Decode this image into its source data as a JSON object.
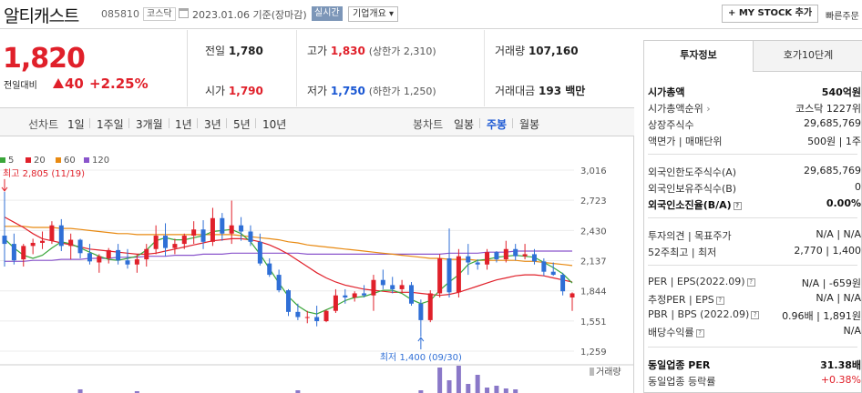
{
  "header": {
    "name": "알티캐스트",
    "code": "085810",
    "market": "코스닥",
    "date": "2023.01.06",
    "basis": "기준(장마감)",
    "realtime": "실시간",
    "overview": "기업개요",
    "overview_arrow": "▾",
    "mystock": "+ MY STOCK 추가",
    "fast": "빠른주문"
  },
  "quote": {
    "price": "1,820",
    "change_label": "전일대비",
    "change": "40",
    "pct": "+2.25%"
  },
  "stats": {
    "prev_l": "전일",
    "prev": "1,780",
    "high_l": "고가",
    "high": "1,830",
    "up_limit": "(상한가 2,310)",
    "vol_l": "거래량",
    "vol": "107,160",
    "open_l": "시가",
    "open": "1,790",
    "low_l": "저가",
    "low": "1,750",
    "down_limit": "(하한가 1,250)",
    "amt_l": "거래대금",
    "amt": "193 백만"
  },
  "toolbar": {
    "line": "선차트",
    "line_items": [
      "1일",
      "1주일",
      "3개월",
      "1년",
      "3년",
      "5년",
      "10년"
    ],
    "candle": "봉차트",
    "candle_items": [
      "일봉",
      "주봉",
      "월봉"
    ],
    "active_candle": "주봉"
  },
  "legend": [
    {
      "label": "5",
      "color": "#3aa63a"
    },
    {
      "label": "20",
      "color": "#e0202a"
    },
    {
      "label": "60",
      "color": "#e88a12"
    },
    {
      "label": "120",
      "color": "#8a55cc"
    }
  ],
  "chart_data": {
    "type": "candlestick",
    "period": "주봉",
    "y_ticks": [
      3016,
      2723,
      2430,
      2137,
      1844,
      1551,
      1259
    ],
    "ylim": [
      1259,
      3016
    ],
    "max_label": "최고 2,805 (11/19)",
    "min_label": "최저 1,400 (09/30)",
    "volume_label": "거래량",
    "candles": [
      [
        2380,
        2805,
        2080,
        2300
      ],
      [
        2300,
        2400,
        2100,
        2140
      ],
      [
        2150,
        2300,
        2080,
        2280
      ],
      [
        2280,
        2350,
        2200,
        2310
      ],
      [
        2310,
        2420,
        2250,
        2330
      ],
      [
        2330,
        2520,
        2300,
        2480
      ],
      [
        2480,
        2540,
        2230,
        2280
      ],
      [
        2280,
        2400,
        2150,
        2340
      ],
      [
        2340,
        2350,
        2160,
        2210
      ],
      [
        2210,
        2300,
        2100,
        2130
      ],
      [
        2120,
        2200,
        2020,
        2180
      ],
      [
        2160,
        2260,
        2110,
        2240
      ],
      [
        2240,
        2300,
        2100,
        2140
      ],
      [
        2140,
        2250,
        2060,
        2100
      ],
      [
        2100,
        2200,
        2020,
        2150
      ],
      [
        2150,
        2300,
        2080,
        2250
      ],
      [
        2250,
        2480,
        2200,
        2380
      ],
      [
        2380,
        2500,
        2180,
        2260
      ],
      [
        2260,
        2350,
        2200,
        2300
      ],
      [
        2300,
        2400,
        2250,
        2380
      ],
      [
        2380,
        2520,
        2300,
        2440
      ],
      [
        2440,
        2530,
        2250,
        2320
      ],
      [
        2320,
        2650,
        2280,
        2550
      ],
      [
        2550,
        2600,
        2330,
        2400
      ],
      [
        2400,
        2720,
        2300,
        2480
      ],
      [
        2480,
        2560,
        2330,
        2420
      ],
      [
        2420,
        2480,
        2280,
        2320
      ],
      [
        2320,
        2400,
        2090,
        2110
      ],
      [
        2110,
        2160,
        1980,
        2000
      ],
      [
        2000,
        2050,
        1830,
        1850
      ],
      [
        1850,
        1860,
        1600,
        1640
      ],
      [
        1640,
        1720,
        1560,
        1590
      ],
      [
        1590,
        1650,
        1530,
        1590
      ],
      [
        1590,
        1700,
        1500,
        1550
      ],
      [
        1550,
        1660,
        1540,
        1650
      ],
      [
        1650,
        1860,
        1630,
        1800
      ],
      [
        1800,
        1860,
        1720,
        1780
      ],
      [
        1780,
        1840,
        1740,
        1820
      ],
      [
        1820,
        1900,
        1780,
        1800
      ],
      [
        1800,
        2000,
        1650,
        1950
      ],
      [
        1950,
        2050,
        1860,
        1900
      ],
      [
        1900,
        1980,
        1820,
        1860
      ],
      [
        1860,
        1950,
        1820,
        1900
      ],
      [
        1900,
        1930,
        1700,
        1720
      ],
      [
        1720,
        1760,
        1400,
        1560
      ],
      [
        1560,
        1850,
        1540,
        1820
      ],
      [
        1820,
        2200,
        1780,
        2160
      ],
      [
        2160,
        2450,
        1780,
        1830
      ],
      [
        1830,
        2250,
        1780,
        2180
      ],
      [
        2180,
        2300,
        2000,
        2120
      ],
      [
        2120,
        2150,
        2050,
        2100
      ],
      [
        2100,
        2250,
        2050,
        2220
      ],
      [
        2220,
        2230,
        2120,
        2150
      ],
      [
        2150,
        2330,
        2120,
        2250
      ],
      [
        2250,
        2300,
        2140,
        2180
      ],
      [
        2180,
        2300,
        2150,
        2200
      ],
      [
        2200,
        2250,
        2100,
        2130
      ],
      [
        2130,
        2160,
        1990,
        2030
      ],
      [
        2030,
        2120,
        1990,
        2000
      ],
      [
        2000,
        2020,
        1800,
        1840
      ],
      [
        1780,
        1830,
        1650,
        1820
      ]
    ],
    "ma": {
      "5": [
        2350,
        2260,
        2190,
        2160,
        2190,
        2260,
        2320,
        2300,
        2260,
        2220,
        2180,
        2150,
        2140,
        2160,
        2180,
        2240,
        2330,
        2360,
        2340,
        2340,
        2360,
        2380,
        2420,
        2430,
        2440,
        2400,
        2320,
        2200,
        2060,
        1920,
        1790,
        1700,
        1640,
        1620,
        1660,
        1700,
        1750,
        1780,
        1790,
        1820,
        1850,
        1850,
        1820,
        1760,
        1720,
        1750,
        1850,
        1930,
        2000,
        2100,
        2140,
        2150,
        2170,
        2180,
        2190,
        2180,
        2170,
        2120,
        2070,
        2010,
        1920
      ],
      "20": [
        2560,
        2510,
        2460,
        2400,
        2350,
        2330,
        2310,
        2290,
        2270,
        2250,
        2240,
        2230,
        2220,
        2210,
        2200,
        2200,
        2210,
        2230,
        2250,
        2270,
        2290,
        2310,
        2330,
        2340,
        2350,
        2350,
        2340,
        2320,
        2290,
        2250,
        2200,
        2140,
        2080,
        2020,
        1970,
        1930,
        1900,
        1880,
        1860,
        1850,
        1840,
        1830,
        1830,
        1830,
        1820,
        1810,
        1800,
        1810,
        1830,
        1860,
        1890,
        1920,
        1950,
        1970,
        1990,
        2000,
        2000,
        1990,
        1970,
        1950,
        1930
      ],
      "60": [
        2470,
        2470,
        2470,
        2460,
        2460,
        2460,
        2450,
        2450,
        2440,
        2430,
        2420,
        2410,
        2400,
        2400,
        2390,
        2390,
        2390,
        2390,
        2390,
        2390,
        2390,
        2390,
        2390,
        2390,
        2390,
        2380,
        2370,
        2360,
        2350,
        2340,
        2320,
        2310,
        2290,
        2280,
        2270,
        2260,
        2250,
        2240,
        2230,
        2220,
        2210,
        2200,
        2190,
        2180,
        2170,
        2160,
        2160,
        2150,
        2150,
        2150,
        2140,
        2140,
        2140,
        2140,
        2140,
        2130,
        2130,
        2120,
        2110,
        2100,
        2090
      ],
      "120": [
        2130,
        2130,
        2130,
        2140,
        2140,
        2140,
        2150,
        2150,
        2150,
        2160,
        2160,
        2160,
        2170,
        2170,
        2170,
        2180,
        2180,
        2180,
        2190,
        2190,
        2190,
        2200,
        2200,
        2200,
        2210,
        2210,
        2210,
        2210,
        2210,
        2210,
        2210,
        2210,
        2200,
        2200,
        2200,
        2200,
        2200,
        2200,
        2200,
        2200,
        2200,
        2200,
        2200,
        2200,
        2200,
        2200,
        2200,
        2210,
        2210,
        2210,
        2210,
        2220,
        2220,
        2220,
        2230,
        2230,
        2230,
        2230,
        2230,
        2230,
        2230
      ]
    }
  },
  "panel": {
    "tab1": "투자정보",
    "tab2": "호가10단계",
    "rows": [
      {
        "k": "시가총액",
        "v": "540억원",
        "b": true
      },
      {
        "k": "시가총액순위",
        "v": "코스닥 1227위",
        "arrow": "›"
      },
      {
        "k": "상장주식수",
        "v": "29,685,769"
      },
      {
        "k": "액면가 | 매매단위",
        "v": "500원 | 1주"
      },
      {
        "k": "외국인한도주식수(A)",
        "v": "29,685,769"
      },
      {
        "k": "외국인보유주식수(B)",
        "v": "0"
      },
      {
        "k": "외국인소진율(B/A)",
        "v": "0.00%",
        "b": true,
        "q": "?"
      },
      {
        "k": "투자의견 | 목표주가",
        "v": "N/A | N/A"
      },
      {
        "k": "52주최고 | 최저",
        "v": "2,770 | 1,400"
      },
      {
        "k": "PER | EPS(2022.09)",
        "v": "N/A | -659원",
        "q": "?"
      },
      {
        "k": "추정PER | EPS",
        "v": "N/A | N/A",
        "q": "?"
      },
      {
        "k": "PBR | BPS (2022.09)",
        "v": "0.96배 | 1,891원",
        "q": "?"
      },
      {
        "k": "배당수익률",
        "v": "N/A",
        "q": "?"
      },
      {
        "k": "동일업종 PER",
        "v": "31.38배",
        "b": true
      },
      {
        "k": "동일업종 등락률",
        "v": "+0.38%",
        "red": true
      }
    ]
  }
}
